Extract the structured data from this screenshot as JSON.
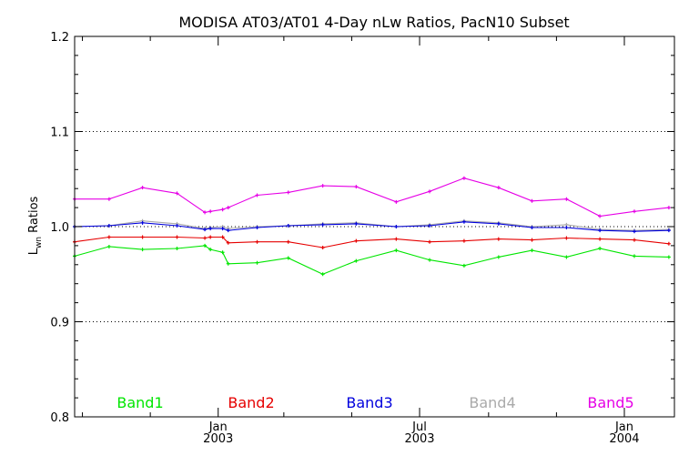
{
  "chart_data": {
    "type": "line",
    "title": "MODISA AT03/AT01 4-Day nLw Ratios, PacN10 Subset",
    "ylabel_main": "L",
    "ylabel_sub": "wn",
    "ylabel_rest": " Ratios",
    "xlabel": "",
    "ylim": [
      0.8,
      1.2
    ],
    "yticks": [
      0.8,
      0.9,
      1.0,
      1.1,
      1.2
    ],
    "ytick_labels": [
      "0.8",
      "0.9",
      "1.0",
      "1.1",
      "1.2"
    ],
    "xlim": [
      "2002-08-25",
      "2004-02-15"
    ],
    "xticks": [
      {
        "date": "2003-01-01",
        "month": "Jan",
        "year": "2003"
      },
      {
        "date": "2003-07-01",
        "month": "Jul",
        "year": "2003"
      },
      {
        "date": "2004-01-01",
        "month": "Jan",
        "year": "2004"
      }
    ],
    "minor_xticks": [
      "2002-09-01",
      "2002-11-01",
      "2003-03-01",
      "2003-05-01",
      "2003-09-01",
      "2003-11-01"
    ],
    "gridlines_y": [
      0.9,
      1.0,
      1.1
    ],
    "reference_line": 1.0,
    "x": [
      "2002-08-25",
      "2002-09-25",
      "2002-10-25",
      "2002-11-25",
      "2002-12-20",
      "2002-12-25",
      "2003-01-05",
      "2003-01-10",
      "2003-02-05",
      "2003-03-05",
      "2003-04-05",
      "2003-05-05",
      "2003-06-10",
      "2003-07-10",
      "2003-08-10",
      "2003-09-10",
      "2003-10-10",
      "2003-11-10",
      "2003-12-10",
      "2004-01-10",
      "2004-02-10"
    ],
    "series": [
      {
        "name": "Band1",
        "color": "#00e600",
        "values": [
          0.969,
          0.979,
          0.976,
          0.977,
          0.98,
          0.976,
          0.973,
          0.961,
          0.962,
          0.967,
          0.95,
          0.964,
          0.975,
          0.965,
          0.959,
          0.968,
          0.975,
          0.968,
          0.977,
          0.969,
          0.968
        ]
      },
      {
        "name": "Band2",
        "color": "#e60000",
        "values": [
          0.984,
          0.989,
          0.989,
          0.989,
          0.988,
          0.989,
          0.989,
          0.983,
          0.984,
          0.984,
          0.978,
          0.985,
          0.987,
          0.984,
          0.985,
          0.987,
          0.986,
          0.988,
          0.987,
          0.986,
          0.982
        ]
      },
      {
        "name": "Band3",
        "color": "#0000dd",
        "values": [
          1.0,
          1.001,
          1.004,
          1.001,
          0.997,
          0.998,
          0.998,
          0.996,
          0.999,
          1.001,
          1.002,
          1.003,
          1.0,
          1.001,
          1.005,
          1.003,
          0.999,
          0.999,
          0.996,
          0.995,
          0.996
        ]
      },
      {
        "name": "Band4",
        "color": "#aaaaaa",
        "values": [
          1.0,
          1.001,
          1.006,
          1.003,
          0.998,
          0.999,
          1.0,
          0.998,
          1.0,
          1.001,
          1.003,
          1.004,
          1.0,
          1.002,
          1.006,
          1.004,
          1.0,
          1.002,
          0.997,
          0.996,
          0.997
        ]
      },
      {
        "name": "Band5",
        "color": "#e600e6",
        "values": [
          1.029,
          1.029,
          1.041,
          1.035,
          1.015,
          1.016,
          1.018,
          1.02,
          1.033,
          1.036,
          1.043,
          1.042,
          1.026,
          1.037,
          1.051,
          1.041,
          1.027,
          1.029,
          1.011,
          1.016,
          1.02
        ]
      }
    ],
    "legend": "bottom, inside plot, horizontal"
  }
}
